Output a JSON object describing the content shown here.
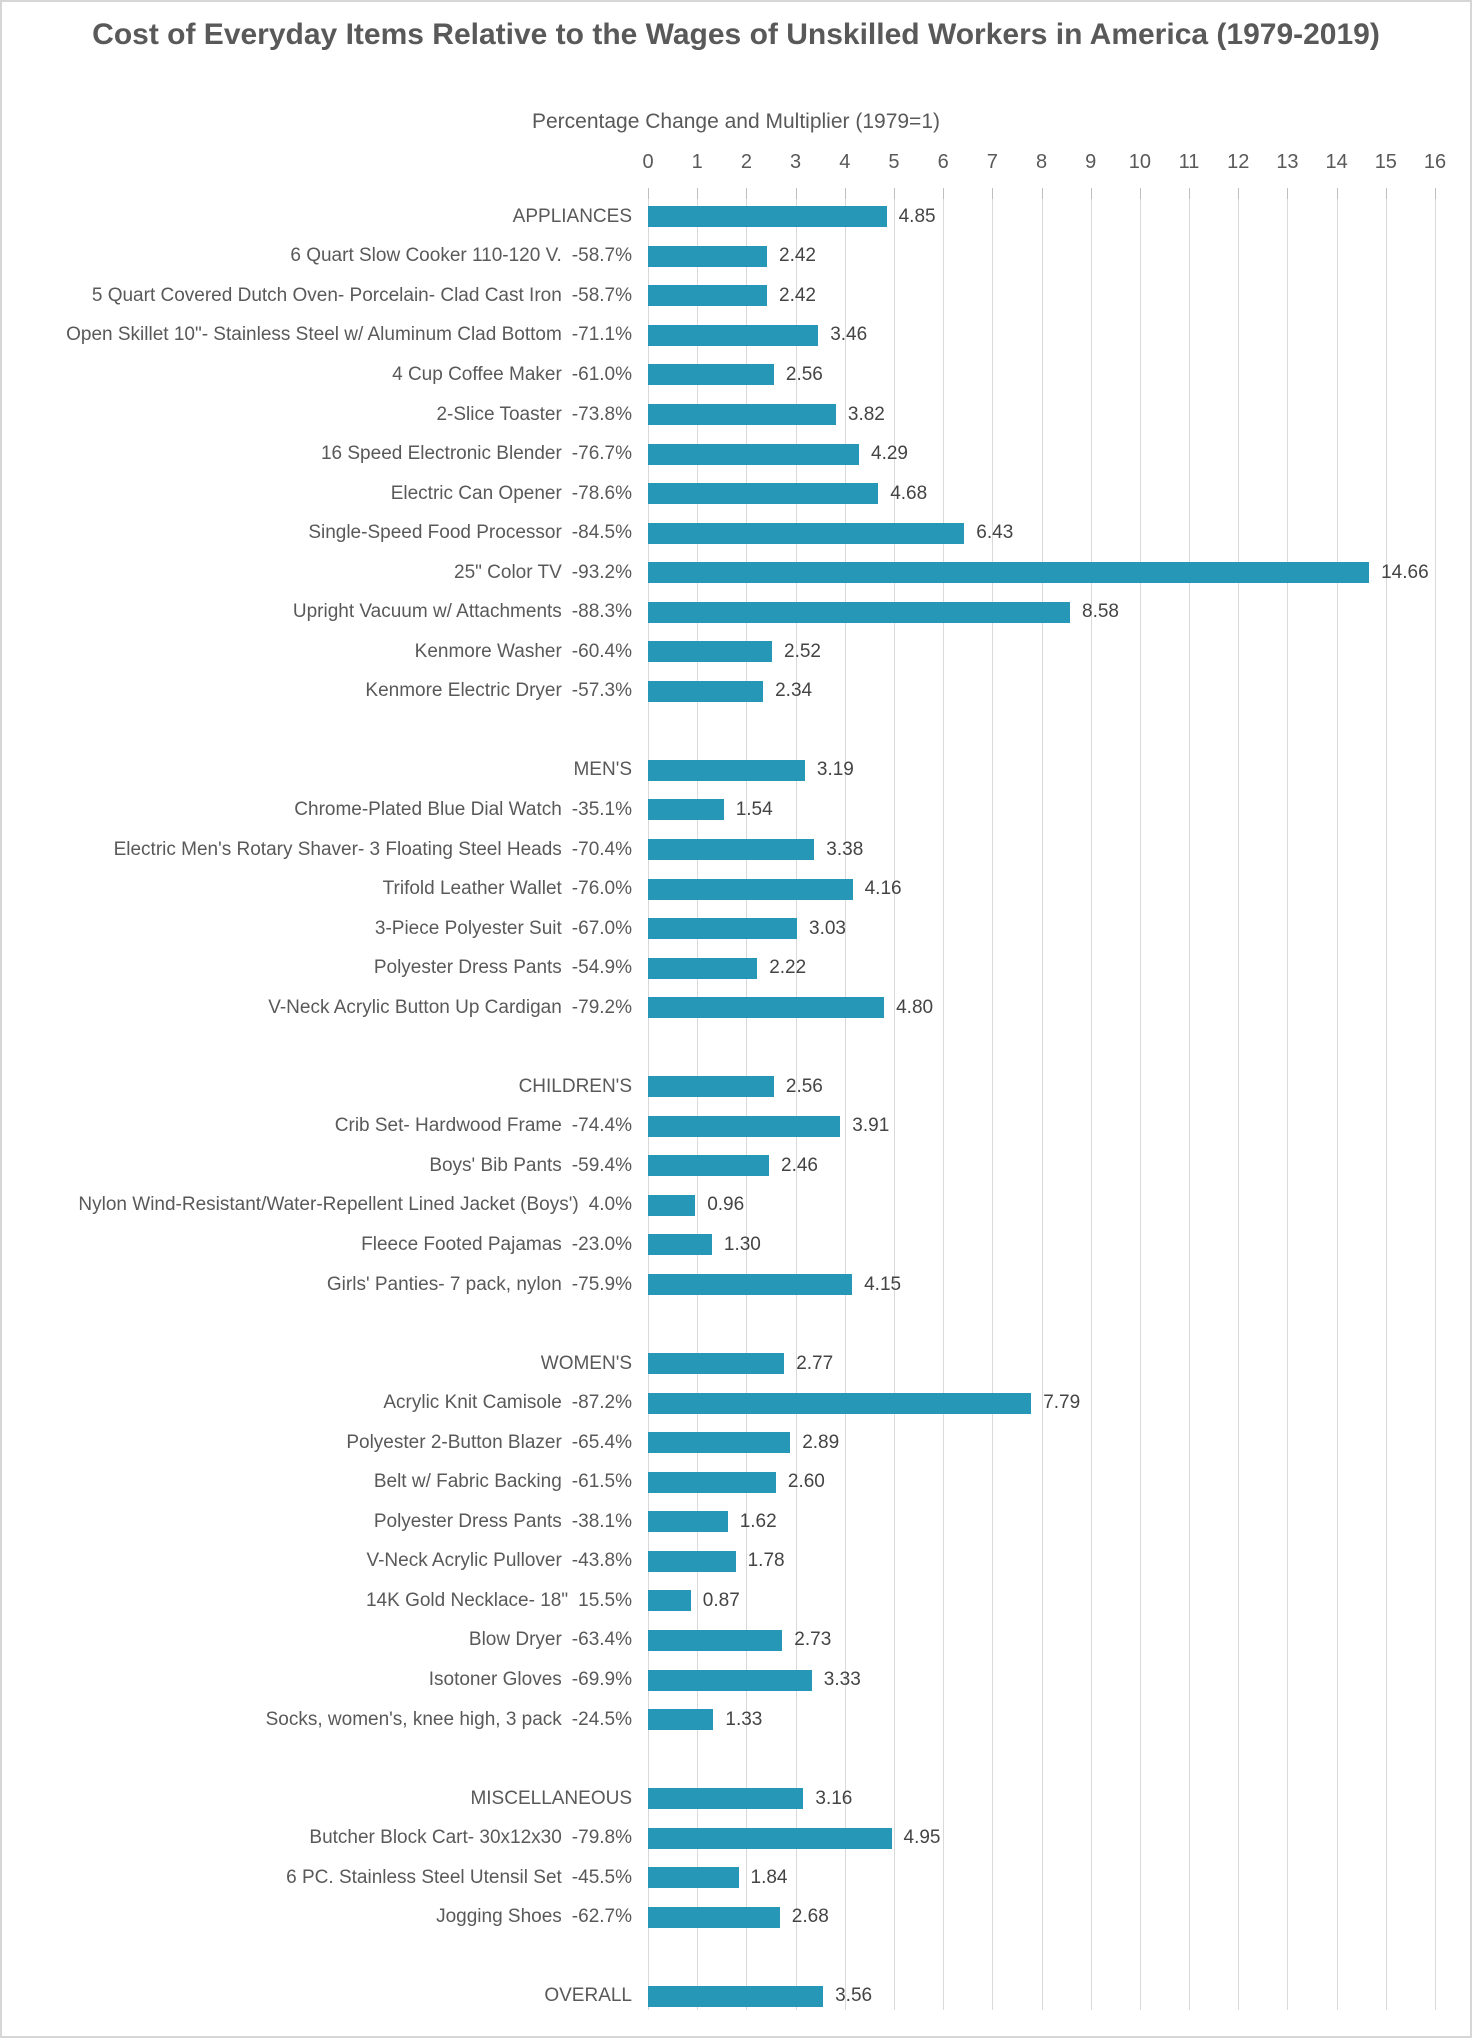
{
  "chart_data": {
    "type": "bar",
    "orientation": "horizontal",
    "title": "Cost of Everyday Items Relative to the Wages of Unskilled Workers in America (1979-2019)",
    "subtitle": "Percentage Change and Multiplier (1979=1)",
    "xlim": [
      0,
      16
    ],
    "x_ticks": [
      0,
      1,
      2,
      3,
      4,
      5,
      6,
      7,
      8,
      9,
      10,
      11,
      12,
      13,
      14,
      15,
      16
    ],
    "grid": true,
    "legend": "none",
    "bar_color": "#2797b7",
    "grid_color": "#d9d9d9",
    "label_color": "#595959",
    "value_color": "#444444",
    "sections": [
      {
        "name": "APPLIANCES",
        "pct": "",
        "value": "4.85",
        "items": [
          {
            "label": "6 Quart Slow Cooker 110-120 V.",
            "pct": "-58.7%",
            "value": "2.42"
          },
          {
            "label": "5 Quart Covered Dutch Oven- Porcelain- Clad Cast Iron",
            "pct": "-58.7%",
            "value": "2.42"
          },
          {
            "label": "Open Skillet 10\"- Stainless Steel w/ Aluminum Clad Bottom",
            "pct": "-71.1%",
            "value": "3.46"
          },
          {
            "label": "4 Cup Coffee Maker",
            "pct": "-61.0%",
            "value": "2.56"
          },
          {
            "label": "2-Slice Toaster",
            "pct": "-73.8%",
            "value": "3.82"
          },
          {
            "label": "16 Speed Electronic Blender",
            "pct": "-76.7%",
            "value": "4.29"
          },
          {
            "label": "Electric Can Opener",
            "pct": "-78.6%",
            "value": "4.68"
          },
          {
            "label": "Single-Speed Food Processor",
            "pct": "-84.5%",
            "value": "6.43"
          },
          {
            "label": "25\" Color TV",
            "pct": "-93.2%",
            "value": "14.66"
          },
          {
            "label": "Upright Vacuum w/ Attachments",
            "pct": "-88.3%",
            "value": "8.58"
          },
          {
            "label": "Kenmore Washer",
            "pct": "-60.4%",
            "value": "2.52"
          },
          {
            "label": "Kenmore Electric Dryer",
            "pct": "-57.3%",
            "value": "2.34"
          }
        ]
      },
      {
        "name": "MEN'S",
        "pct": "",
        "value": "3.19",
        "items": [
          {
            "label": "Chrome-Plated Blue Dial Watch",
            "pct": "-35.1%",
            "value": "1.54"
          },
          {
            "label": "Electric Men's Rotary Shaver- 3 Floating Steel Heads",
            "pct": "-70.4%",
            "value": "3.38"
          },
          {
            "label": "Trifold Leather Wallet",
            "pct": "-76.0%",
            "value": "4.16"
          },
          {
            "label": "3-Piece Polyester Suit",
            "pct": "-67.0%",
            "value": "3.03"
          },
          {
            "label": "Polyester Dress Pants",
            "pct": "-54.9%",
            "value": "2.22"
          },
          {
            "label": "V-Neck Acrylic Button Up Cardigan",
            "pct": "-79.2%",
            "value": "4.80"
          }
        ]
      },
      {
        "name": "CHILDREN'S",
        "pct": "",
        "value": "2.56",
        "items": [
          {
            "label": "Crib Set- Hardwood Frame",
            "pct": "-74.4%",
            "value": "3.91"
          },
          {
            "label": "Boys' Bib Pants",
            "pct": "-59.4%",
            "value": "2.46"
          },
          {
            "label": "Nylon Wind-Resistant/Water-Repellent Lined Jacket (Boys')",
            "pct": "4.0%",
            "value": "0.96"
          },
          {
            "label": "Fleece Footed Pajamas",
            "pct": "-23.0%",
            "value": "1.30"
          },
          {
            "label": "Girls' Panties- 7 pack, nylon",
            "pct": "-75.9%",
            "value": "4.15"
          }
        ]
      },
      {
        "name": "WOMEN'S",
        "pct": "",
        "value": "2.77",
        "items": [
          {
            "label": "Acrylic Knit Camisole",
            "pct": "-87.2%",
            "value": "7.79"
          },
          {
            "label": "Polyester 2-Button Blazer",
            "pct": "-65.4%",
            "value": "2.89"
          },
          {
            "label": "Belt w/ Fabric Backing",
            "pct": "-61.5%",
            "value": "2.60"
          },
          {
            "label": "Polyester Dress Pants",
            "pct": "-38.1%",
            "value": "1.62"
          },
          {
            "label": "V-Neck Acrylic Pullover",
            "pct": "-43.8%",
            "value": "1.78"
          },
          {
            "label": "14K Gold Necklace- 18\"",
            "pct": "15.5%",
            "value": "0.87"
          },
          {
            "label": "Blow Dryer",
            "pct": "-63.4%",
            "value": "2.73"
          },
          {
            "label": "Isotoner Gloves",
            "pct": "-69.9%",
            "value": "3.33"
          },
          {
            "label": "Socks, women's, knee high, 3 pack",
            "pct": "-24.5%",
            "value": "1.33"
          }
        ]
      },
      {
        "name": "MISCELLANEOUS",
        "pct": "",
        "value": "3.16",
        "items": [
          {
            "label": "Butcher Block Cart- 30x12x30",
            "pct": "-79.8%",
            "value": "4.95"
          },
          {
            "label": "6 PC. Stainless Steel Utensil Set",
            "pct": "-45.5%",
            "value": "1.84"
          },
          {
            "label": "Jogging Shoes",
            "pct": "-62.7%",
            "value": "2.68"
          }
        ]
      },
      {
        "name": "OVERALL",
        "pct": "",
        "value": "3.56",
        "items": []
      }
    ]
  }
}
